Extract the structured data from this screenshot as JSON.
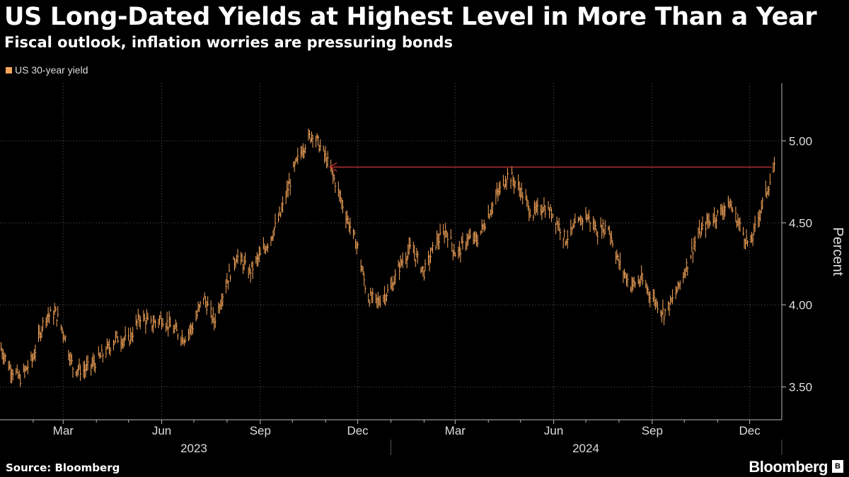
{
  "header": {
    "title": "US Long-Dated Yields at Highest Level in More Than a Year",
    "subtitle": "Fiscal outlook, inflation worries are pressuring bonds"
  },
  "footer": {
    "source": "Source: Bloomberg",
    "brand": "Bloomberg",
    "brand_icon": "bloomberg-news-icon"
  },
  "colors": {
    "series": "#f5a55a",
    "annotation": "#e03a3a",
    "grid": "#555555",
    "axis": "#bbbbbb"
  },
  "chart_data": {
    "type": "line",
    "title": "US Long-Dated Yields at Highest Level in More Than a Year",
    "subtitle": "Fiscal outlook, inflation worries are pressuring bonds",
    "xlabel": "",
    "ylabel": "Percent",
    "ylim": [
      3.3,
      5.35
    ],
    "yticks": [
      3.5,
      4.0,
      4.5,
      5.0
    ],
    "ytick_labels": [
      "3.50",
      "4.00",
      "4.50",
      "5.00"
    ],
    "xlim": [
      "2023-01-01",
      "2024-12-31"
    ],
    "xticks": [
      {
        "date": "2023-03-01",
        "label": "Mar"
      },
      {
        "date": "2023-06-01",
        "label": "Jun"
      },
      {
        "date": "2023-09-01",
        "label": "Sep"
      },
      {
        "date": "2023-12-01",
        "label": "Dec"
      },
      {
        "date": "2024-03-01",
        "label": "Mar"
      },
      {
        "date": "2024-06-01",
        "label": "Jun"
      },
      {
        "date": "2024-09-01",
        "label": "Sep"
      },
      {
        "date": "2024-12-01",
        "label": "Dec"
      }
    ],
    "minor_xticks": [
      "2023-02-01",
      "2023-04-01",
      "2023-05-01",
      "2023-07-01",
      "2023-08-01",
      "2023-10-01",
      "2023-11-01",
      "2024-01-01",
      "2024-02-01",
      "2024-04-01",
      "2024-05-01",
      "2024-07-01",
      "2024-08-01",
      "2024-10-01",
      "2024-11-01"
    ],
    "year_labels": [
      {
        "label": "2023",
        "date": "2023-07-01"
      },
      {
        "label": "2024",
        "date": "2024-07-01"
      }
    ],
    "year_dividers": [
      "2024-01-01",
      "2024-12-31"
    ],
    "grid": true,
    "legend_position": "top-left",
    "series": [
      {
        "name": "US 30-year yield",
        "x": [
          "2023-01-01",
          "2023-01-10",
          "2023-01-20",
          "2023-02-01",
          "2023-02-12",
          "2023-02-22",
          "2023-03-02",
          "2023-03-10",
          "2023-03-20",
          "2023-03-31",
          "2023-04-10",
          "2023-04-20",
          "2023-05-01",
          "2023-05-12",
          "2023-05-22",
          "2023-06-01",
          "2023-06-12",
          "2023-06-22",
          "2023-07-01",
          "2023-07-10",
          "2023-07-20",
          "2023-08-01",
          "2023-08-10",
          "2023-08-22",
          "2023-09-01",
          "2023-09-10",
          "2023-09-20",
          "2023-10-01",
          "2023-10-10",
          "2023-10-20",
          "2023-11-01",
          "2023-11-10",
          "2023-11-20",
          "2023-12-01",
          "2023-12-10",
          "2023-12-20",
          "2024-01-01",
          "2024-01-10",
          "2024-01-20",
          "2024-02-01",
          "2024-02-12",
          "2024-02-22",
          "2024-03-02",
          "2024-03-12",
          "2024-03-22",
          "2024-04-01",
          "2024-04-10",
          "2024-04-20",
          "2024-05-01",
          "2024-05-12",
          "2024-05-22",
          "2024-06-01",
          "2024-06-12",
          "2024-06-22",
          "2024-07-01",
          "2024-07-12",
          "2024-07-22",
          "2024-08-01",
          "2024-08-12",
          "2024-08-22",
          "2024-09-01",
          "2024-09-12",
          "2024-09-22",
          "2024-10-01",
          "2024-10-12",
          "2024-10-22",
          "2024-11-01",
          "2024-11-12",
          "2024-11-22",
          "2024-12-01",
          "2024-12-12",
          "2024-12-24"
        ],
        "values": [
          3.75,
          3.62,
          3.55,
          3.68,
          3.93,
          3.95,
          3.82,
          3.62,
          3.6,
          3.65,
          3.72,
          3.8,
          3.78,
          3.93,
          3.88,
          3.92,
          3.85,
          3.8,
          3.88,
          4.05,
          3.9,
          4.15,
          4.3,
          4.2,
          4.3,
          4.4,
          4.55,
          4.8,
          4.95,
          5.05,
          4.9,
          4.75,
          4.55,
          4.35,
          4.05,
          4.02,
          4.1,
          4.25,
          4.35,
          4.2,
          4.38,
          4.45,
          4.3,
          4.4,
          4.4,
          4.55,
          4.68,
          4.8,
          4.7,
          4.55,
          4.6,
          4.55,
          4.4,
          4.48,
          4.55,
          4.45,
          4.48,
          4.25,
          4.12,
          4.15,
          4.05,
          3.95,
          4.05,
          4.2,
          4.4,
          4.5,
          4.55,
          4.62,
          4.48,
          4.35,
          4.6,
          4.83
        ]
      }
    ],
    "annotation": {
      "type": "horizontal-arrow",
      "y": 4.84,
      "x_start": "2024-12-31",
      "x_end": "2023-11-01"
    }
  }
}
